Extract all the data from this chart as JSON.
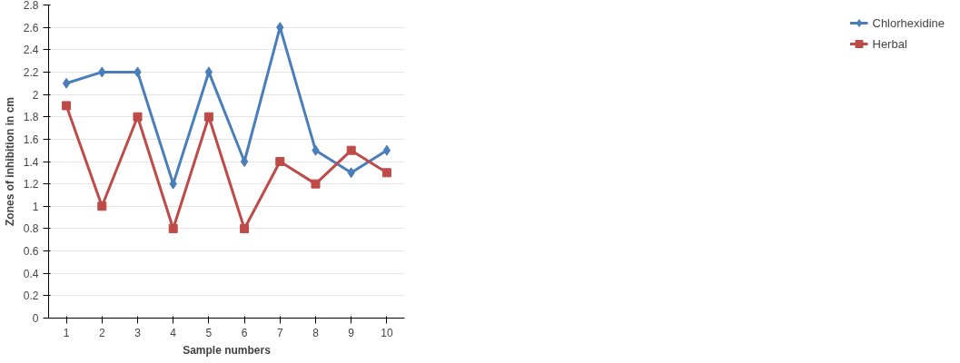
{
  "chart_data": {
    "type": "line",
    "xlabel": "Sample numbers",
    "ylabel": "Zones of inhibition in cm",
    "categories": [
      "1",
      "2",
      "3",
      "4",
      "5",
      "6",
      "7",
      "8",
      "9",
      "10"
    ],
    "series": [
      {
        "name": "Chlorhexidine",
        "color": "#4a7ebb",
        "marker": "diamond",
        "values": [
          2.1,
          2.2,
          2.2,
          1.2,
          2.2,
          1.4,
          2.6,
          1.5,
          1.3,
          1.5
        ]
      },
      {
        "name": "Herbal",
        "color": "#be4b48",
        "marker": "square",
        "values": [
          1.9,
          1.0,
          1.8,
          0.8,
          1.8,
          0.8,
          1.4,
          1.2,
          1.5,
          1.3
        ]
      }
    ],
    "ylim": [
      0,
      2.8
    ],
    "yticks": [
      0,
      0.2,
      0.4,
      0.6,
      0.8,
      1,
      1.2,
      1.4,
      1.6,
      1.8,
      2,
      2.2,
      2.4,
      2.6,
      2.8
    ],
    "grid": "y",
    "legend": "right",
    "line_style": "solid"
  }
}
